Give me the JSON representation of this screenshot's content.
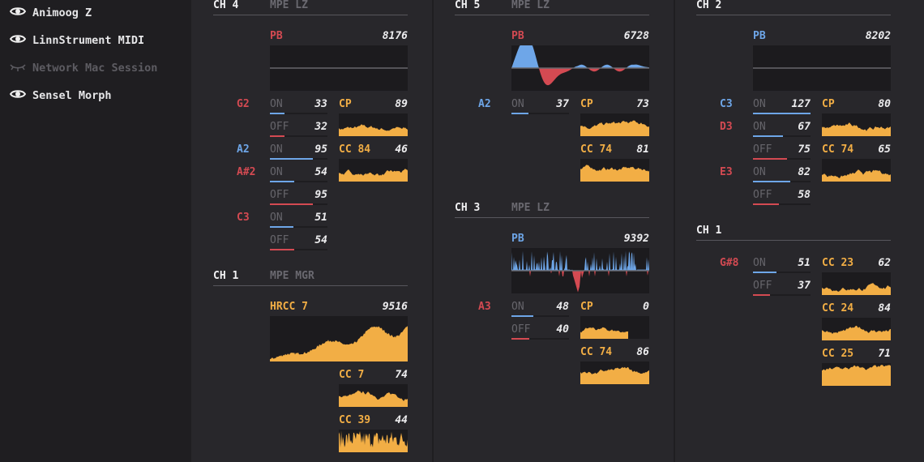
{
  "sidebar": {
    "devices": [
      {
        "name": "Animoog Z",
        "visible": true
      },
      {
        "name": "LinnStrument MIDI",
        "visible": true
      },
      {
        "name": "Network Mac Session",
        "visible": false
      },
      {
        "name": "Sensel Morph",
        "visible": true
      }
    ]
  },
  "colors": {
    "red": "#d44a52",
    "blue": "#6ea6e8",
    "orange": "#f2ae45"
  },
  "columns": [
    {
      "blocks": [
        {
          "channel": "CH 4",
          "mode": "MPE LZ",
          "main": {
            "label": "PB",
            "value": "8176",
            "color": "red",
            "kind": "pb-flat"
          },
          "notes": [
            {
              "note": "G2",
              "color": "red",
              "events": [
                {
                  "type": "ON",
                  "value": 33
                },
                {
                  "type": "OFF",
                  "value": 32
                }
              ]
            },
            {
              "note": "A2",
              "color": "blue",
              "events": [
                {
                  "type": "ON",
                  "value": 95
                }
              ]
            },
            {
              "note": "A#2",
              "color": "red",
              "events": [
                {
                  "type": "ON",
                  "value": 54
                },
                {
                  "type": "OFF",
                  "value": 95
                }
              ]
            },
            {
              "note": "C3",
              "color": "red",
              "events": [
                {
                  "type": "ON",
                  "value": 51
                },
                {
                  "type": "OFF",
                  "value": 54
                }
              ]
            }
          ],
          "ccs": [
            {
              "label": "CP",
              "value": "89"
            },
            {
              "label": "CC 84",
              "value": "46"
            }
          ]
        },
        {
          "channel": "CH 1",
          "mode": "MPE MGR",
          "main": {
            "label": "HRCC 7",
            "value": "9516",
            "color": "orange",
            "kind": "area"
          },
          "notes": [],
          "ccs": [
            {
              "label": "CC 7",
              "value": "74"
            },
            {
              "label": "CC 39",
              "value": "44"
            }
          ]
        }
      ]
    },
    {
      "blocks": [
        {
          "channel": "CH 5",
          "mode": "MPE LZ",
          "main": {
            "label": "PB",
            "value": "6728",
            "color": "red",
            "kind": "pb-wave"
          },
          "notes": [
            {
              "note": "A2",
              "color": "blue",
              "events": [
                {
                  "type": "ON",
                  "value": 37
                }
              ]
            }
          ],
          "ccs": [
            {
              "label": "CP",
              "value": "73"
            },
            {
              "label": "CC 74",
              "value": "81"
            }
          ]
        },
        {
          "channel": "CH 3",
          "mode": "MPE LZ",
          "main": {
            "label": "PB",
            "value": "9392",
            "color": "blue",
            "kind": "pb-spiky"
          },
          "notes": [
            {
              "note": "A3",
              "color": "red",
              "events": [
                {
                  "type": "ON",
                  "value": 48
                },
                {
                  "type": "OFF",
                  "value": 40
                }
              ]
            }
          ],
          "ccs": [
            {
              "label": "CP",
              "value": "0"
            },
            {
              "label": "CC 74",
              "value": "86"
            }
          ]
        }
      ]
    },
    {
      "blocks": [
        {
          "channel": "CH 2",
          "mode": "",
          "main": {
            "label": "PB",
            "value": "8202",
            "color": "blue",
            "kind": "pb-flat"
          },
          "notes": [
            {
              "note": "C3",
              "color": "blue",
              "events": [
                {
                  "type": "ON",
                  "value": 127
                }
              ]
            },
            {
              "note": "D3",
              "color": "red",
              "events": [
                {
                  "type": "ON",
                  "value": 67
                },
                {
                  "type": "OFF",
                  "value": 75
                }
              ]
            },
            {
              "note": "E3",
              "color": "red",
              "events": [
                {
                  "type": "ON",
                  "value": 82
                },
                {
                  "type": "OFF",
                  "value": 58
                }
              ]
            }
          ],
          "ccs": [
            {
              "label": "CP",
              "value": "80"
            },
            {
              "label": "CC 74",
              "value": "65"
            }
          ]
        },
        {
          "channel": "CH 1",
          "mode": "",
          "main": null,
          "notes": [
            {
              "note": "G#8",
              "color": "red",
              "events": [
                {
                  "type": "ON",
                  "value": 51
                },
                {
                  "type": "OFF",
                  "value": 37
                }
              ]
            }
          ],
          "ccs": [
            {
              "label": "CC 23",
              "value": "62"
            },
            {
              "label": "CC 24",
              "value": "84"
            },
            {
              "label": "CC 25",
              "value": "71"
            }
          ]
        }
      ]
    }
  ]
}
